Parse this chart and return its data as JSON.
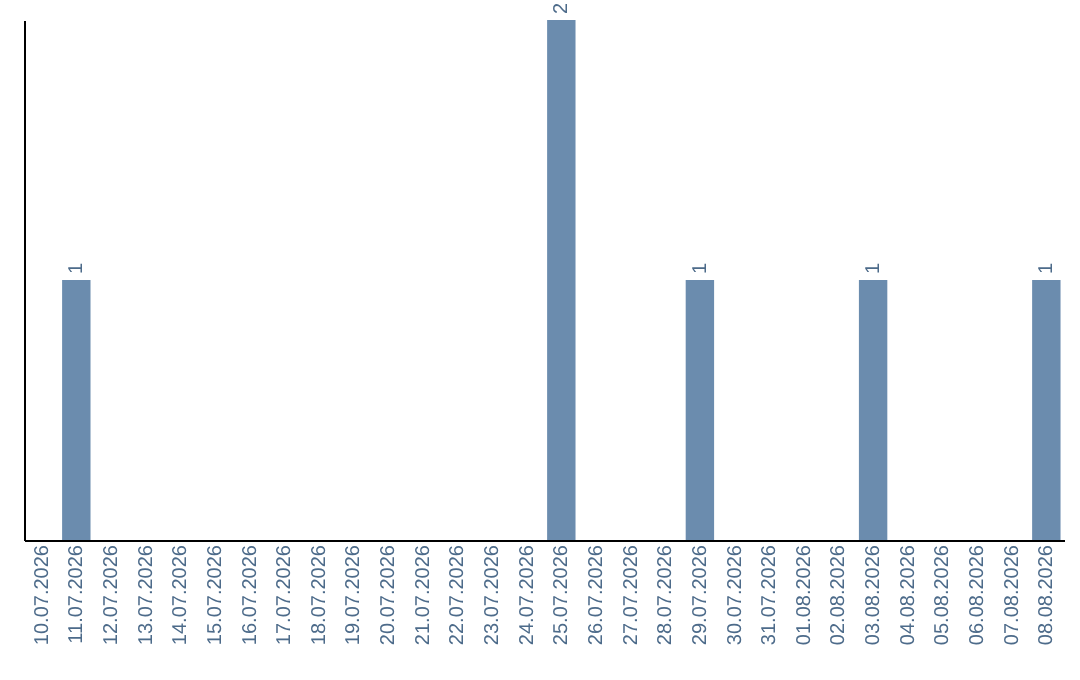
{
  "chart_data": {
    "type": "bar",
    "categories": [
      "10.07.2026",
      "11.07.2026",
      "12.07.2026",
      "13.07.2026",
      "14.07.2026",
      "15.07.2026",
      "16.07.2026",
      "17.07.2026",
      "18.07.2026",
      "19.07.2026",
      "20.07.2026",
      "21.07.2026",
      "22.07.2026",
      "23.07.2026",
      "24.07.2026",
      "25.07.2026",
      "26.07.2026",
      "27.07.2026",
      "28.07.2026",
      "29.07.2026",
      "30.07.2026",
      "31.07.2026",
      "01.08.2026",
      "02.08.2026",
      "03.08.2026",
      "04.08.2026",
      "05.08.2026",
      "06.08.2026",
      "07.08.2026",
      "08.08.2026"
    ],
    "values": [
      0,
      1,
      0,
      0,
      0,
      0,
      0,
      0,
      0,
      0,
      0,
      0,
      0,
      0,
      0,
      2,
      0,
      0,
      0,
      1,
      0,
      0,
      0,
      0,
      1,
      0,
      0,
      0,
      0,
      1
    ],
    "value_labels": [
      null,
      "1",
      null,
      null,
      null,
      null,
      null,
      null,
      null,
      null,
      null,
      null,
      null,
      null,
      null,
      "2",
      null,
      null,
      null,
      "1",
      null,
      null,
      null,
      null,
      "1",
      null,
      null,
      null,
      null,
      "1"
    ],
    "color": "#6b8cae",
    "grid": false
  }
}
